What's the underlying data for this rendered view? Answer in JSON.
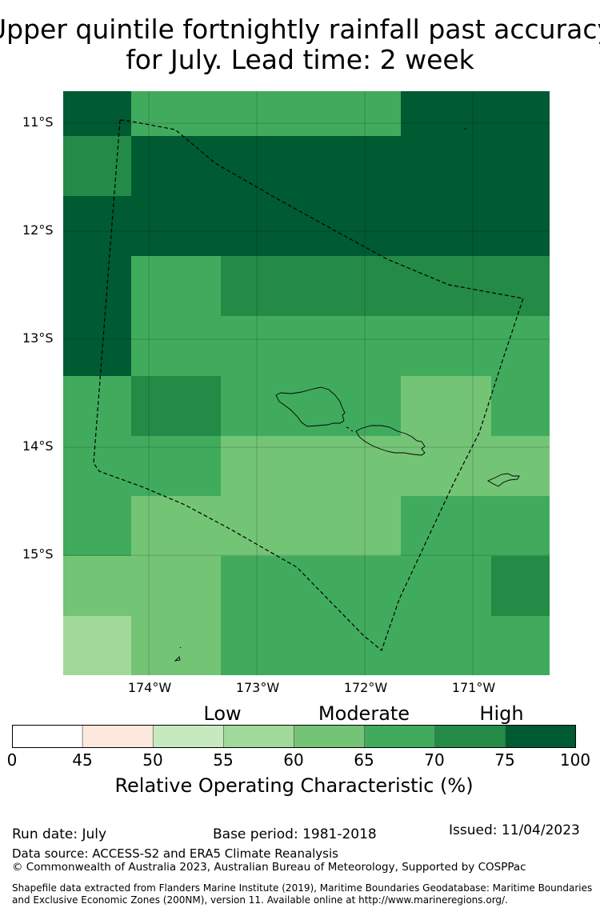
{
  "title": {
    "line1": "Upper quintile fortnightly rainfall past accuracy",
    "line2": "for July. Lead time: 2 week"
  },
  "axes": {
    "lat_labels": [
      "11°S",
      "12°S",
      "13°S",
      "14°S",
      "15°S"
    ],
    "lon_labels": [
      "174°W",
      "173°W",
      "172°W",
      "171°W"
    ]
  },
  "colorbar": {
    "categories": [
      "Low",
      "Moderate",
      "High"
    ],
    "ticks": [
      "0",
      "45",
      "50",
      "55",
      "60",
      "65",
      "70",
      "75",
      "100"
    ],
    "colors": [
      "#ffffff",
      "#fee8de",
      "#c7e9c0",
      "#a1d99b",
      "#74c476",
      "#41ab5d",
      "#238b45",
      "#005a32"
    ],
    "label": "Relative Operating Characteristic (%)"
  },
  "grid": {
    "cols": 8,
    "rows": 10,
    "values": [
      [
        80,
        67,
        67,
        67,
        80,
        80,
        80,
        80
      ],
      [
        72,
        80,
        80,
        80,
        80,
        80,
        80,
        72
      ],
      [
        80,
        80,
        80,
        80,
        80,
        80,
        80,
        67
      ],
      [
        80,
        67,
        72,
        72,
        72,
        72,
        72,
        72
      ],
      [
        80,
        67,
        67,
        67,
        67,
        67,
        67,
        72
      ],
      [
        67,
        72,
        67,
        67,
        62,
        67,
        67,
        72
      ],
      [
        67,
        67,
        62,
        62,
        62,
        62,
        62,
        67
      ],
      [
        67,
        62,
        62,
        62,
        67,
        67,
        67,
        67
      ],
      [
        62,
        62,
        67,
        67,
        67,
        72,
        72,
        72
      ],
      [
        57,
        62,
        67,
        67,
        67,
        67,
        67,
        62
      ]
    ]
  },
  "footer": {
    "run_date": "Run date: July",
    "base_period": "Base period: 1981-2018",
    "issued": "Issued: 11/04/2023",
    "data_source": "Data source: ACCESS-S2 and ERA5 Climate Reanalysis",
    "copyright": "© Commonwealth of Australia 2023, Australian Bureau of Meteorology, Supported by COSPPac",
    "shapefile_line1": "Shapefile data extracted from Flanders Marine Institute (2019), Maritime Boundaries Geodatabase: Maritime Boundaries",
    "shapefile_line2": "and Exclusive Economic Zones (200NM), version 11. Available online at http://www.marineregions.org/."
  }
}
